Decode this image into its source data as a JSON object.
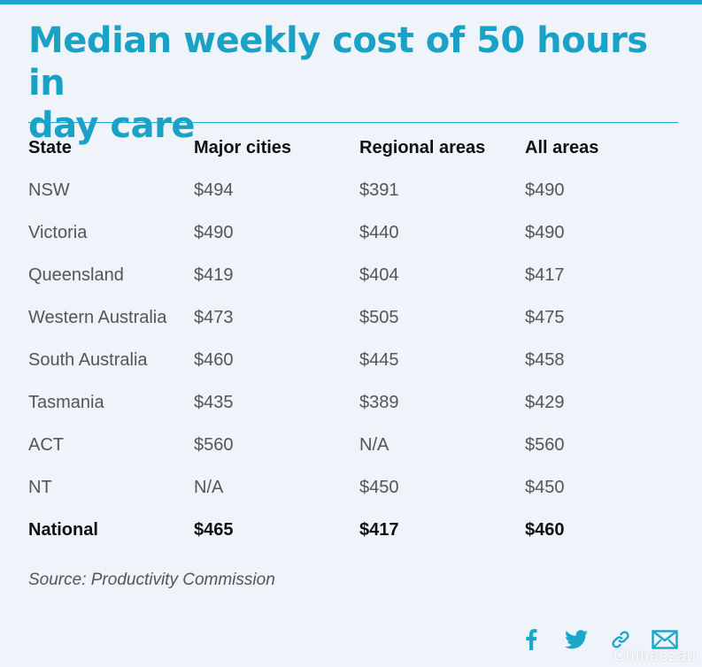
{
  "colors": {
    "accent": "#1aa7c9",
    "title": "#1aa1c6",
    "background": "#eef4f9",
    "icon": "#1aa7c9"
  },
  "title_line1": "Median weekly cost of 50 hours in",
  "title_line2": "day care",
  "table": {
    "headers": [
      "State",
      "Major cities",
      "Regional areas",
      "All areas"
    ],
    "rows": [
      [
        "NSW",
        "$494",
        "$391",
        "$490"
      ],
      [
        "Victoria",
        "$490",
        "$440",
        "$490"
      ],
      [
        "Queensland",
        "$419",
        "$404",
        "$417"
      ],
      [
        "Western Australia",
        "$473",
        "$505",
        "$475"
      ],
      [
        "South Australia",
        "$460",
        "$445",
        "$458"
      ],
      [
        "Tasmania",
        "$435",
        "$389",
        "$429"
      ],
      [
        "ACT",
        "$560",
        "N/A",
        "$560"
      ],
      [
        "NT",
        "N/A",
        "$450",
        "$450"
      ]
    ],
    "total": [
      "National",
      "$465",
      "$417",
      "$460"
    ]
  },
  "source": "Source: Productivity Commission",
  "share_icons": [
    "facebook-icon",
    "twitter-icon",
    "link-icon",
    "email-icon"
  ],
  "watermark": "Chinaczau"
}
